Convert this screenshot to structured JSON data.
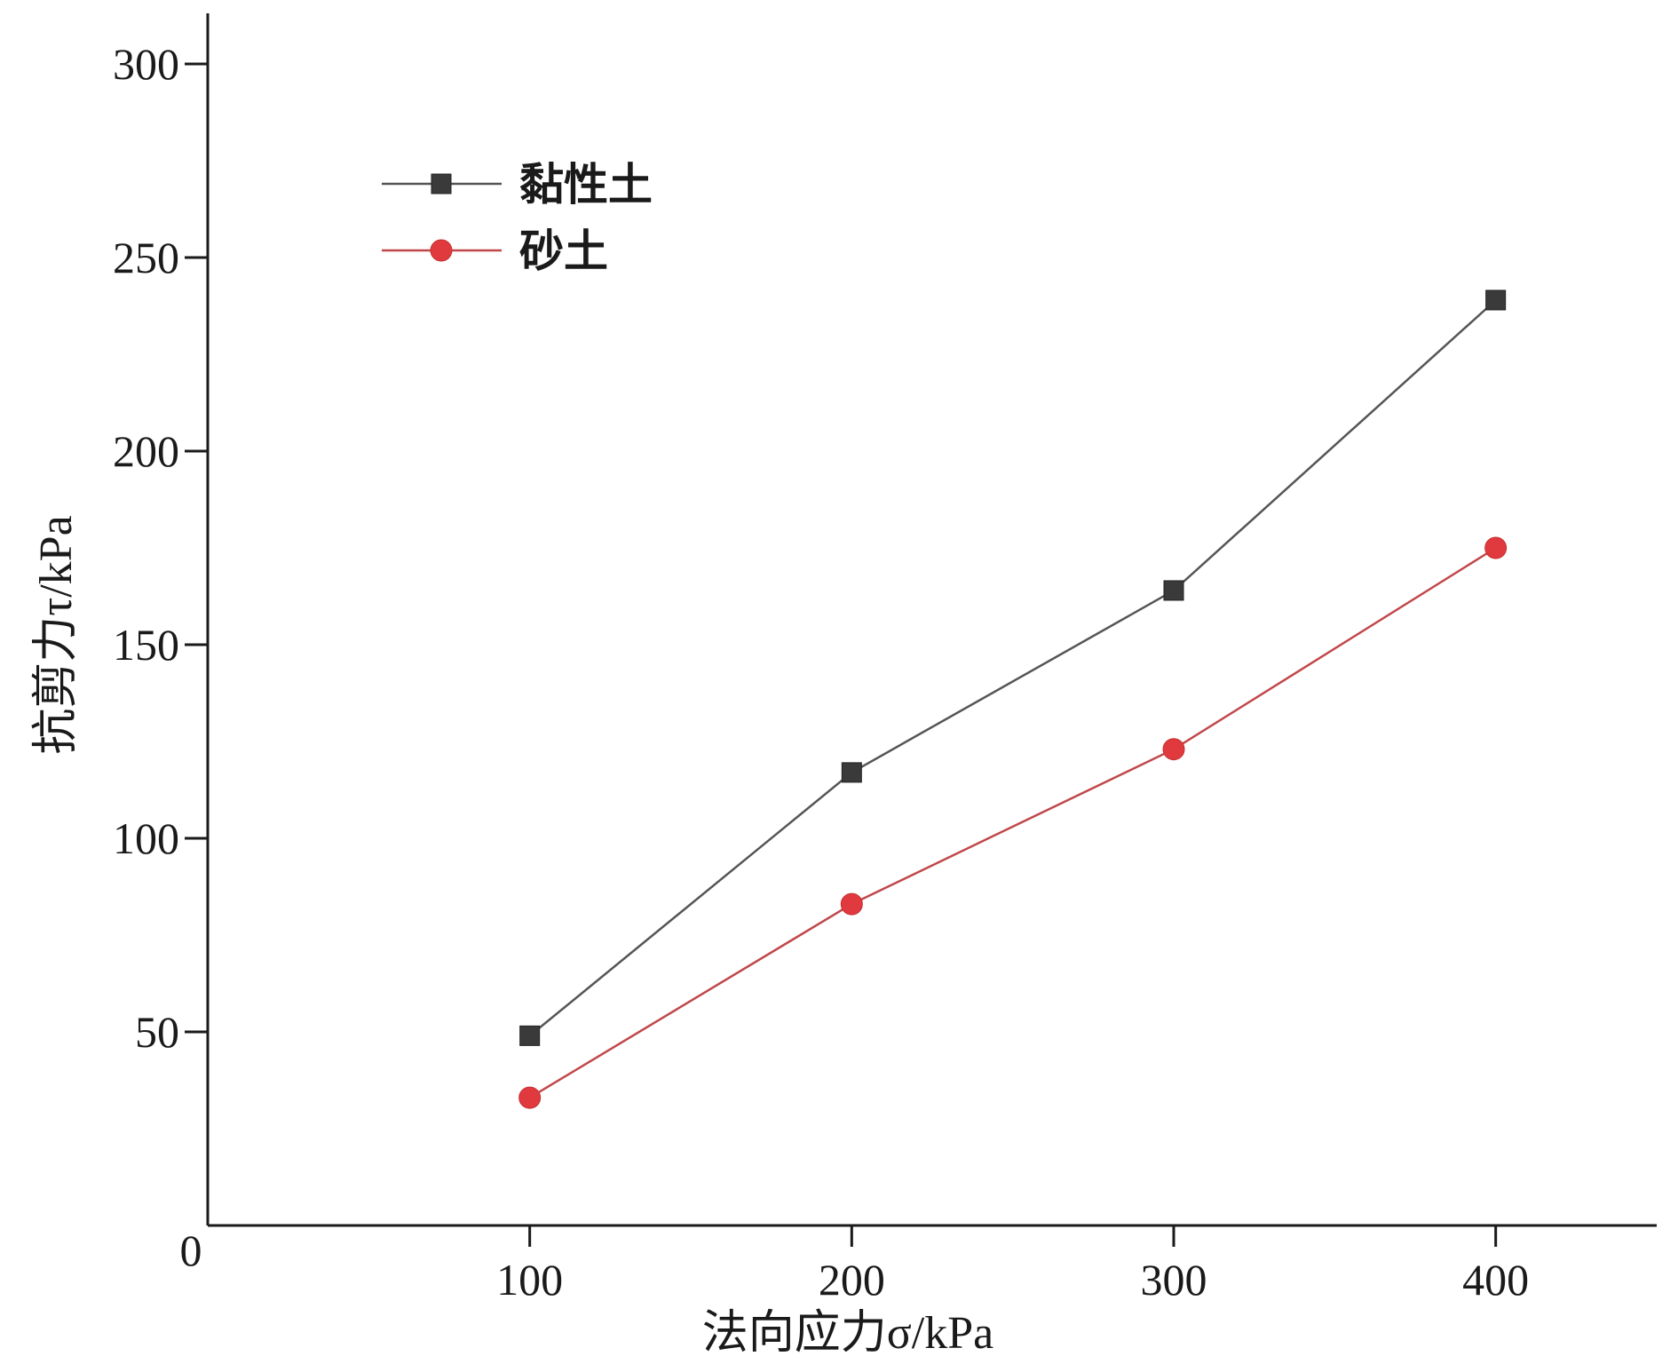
{
  "chart_data": {
    "type": "line",
    "title": "",
    "xlabel": "法向应力σ/kPa",
    "ylabel": "抗剪力τ/kPa",
    "x": [
      100,
      200,
      300,
      400
    ],
    "xlim": [
      0,
      450
    ],
    "ylim": [
      0,
      300
    ],
    "x_ticks": [
      100,
      200,
      300,
      400
    ],
    "y_ticks": [
      50,
      100,
      150,
      200,
      250,
      300
    ],
    "origin_label": "0",
    "grid": false,
    "legend_position": "top-left",
    "series": [
      {
        "name": "黏性土",
        "values": [
          49,
          117,
          164,
          239
        ],
        "color": "#3a3a3a",
        "line_color": "#555555",
        "marker": "square"
      },
      {
        "name": "砂土",
        "values": [
          33,
          83,
          123,
          175
        ],
        "color": "#e03a3e",
        "line_color": "#c0474a",
        "marker": "circle"
      }
    ]
  }
}
